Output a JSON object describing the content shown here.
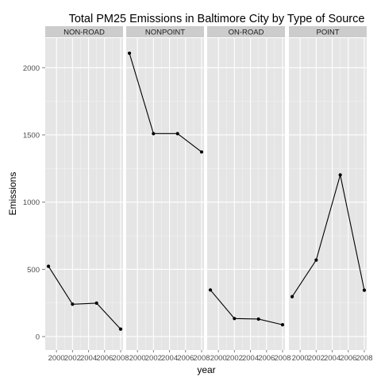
{
  "chart_data": {
    "type": "line",
    "title": "Total PM25 Emissions in Baltimore City by Type of Source",
    "xlabel": "year",
    "ylabel": "Emissions",
    "x": [
      1999,
      2002,
      2005,
      2008
    ],
    "x_ticks": [
      2000,
      2002,
      2004,
      2006,
      2008
    ],
    "xlim": [
      1998.6,
      2008.3
    ],
    "y_ticks": [
      0,
      500,
      1000,
      1500,
      2000
    ],
    "ylim": [
      -100,
      2220
    ],
    "grid": true,
    "panel_background": "#e5e5e5",
    "strip_background": "#cccccc",
    "line_color": "#000000",
    "series": [
      {
        "name": "NON-ROAD",
        "values": [
          522.9,
          240.8,
          248.9,
          55.8
        ]
      },
      {
        "name": "NONPOINT",
        "values": [
          2107.6,
          1509.5,
          1509.5,
          1373.2
        ]
      },
      {
        "name": "ON-ROAD",
        "values": [
          346.8,
          134.3,
          130.4,
          88.3
        ]
      },
      {
        "name": "POINT",
        "values": [
          296.8,
          569.3,
          1202.5,
          344.98
        ]
      }
    ]
  }
}
